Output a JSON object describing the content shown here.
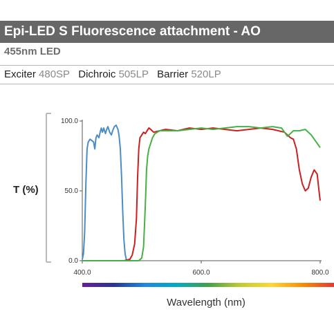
{
  "header": {
    "title": "Epi-LED S Fluorescence attachment - AO",
    "subtitle": "455nm LED"
  },
  "filters": [
    {
      "name": "Exciter",
      "value": "480SP"
    },
    {
      "name": "Dichroic",
      "value": "505LP"
    },
    {
      "name": "Barrier",
      "value": "520LP"
    }
  ],
  "colors": {
    "title_bg": "#676767",
    "exciter": "#4a8dc6",
    "dichroic": "#cc1f1f",
    "barrier": "#45b045",
    "spectrum": [
      "#6a1b9a",
      "#283593",
      "#1e88e5",
      "#00acc1",
      "#43a047",
      "#c0ca33",
      "#fdd835",
      "#fb8c00",
      "#e53935"
    ]
  },
  "chart_data": {
    "type": "line",
    "title": "",
    "xlabel": "Wavelength (nm)",
    "ylabel": "T (%)",
    "xlim": [
      400,
      800
    ],
    "ylim": [
      0,
      100
    ],
    "x_ticks": [
      "400.0",
      "600.0",
      "800.0"
    ],
    "y_ticks": [
      "0.0",
      "50.0",
      "100.0"
    ],
    "grid": false,
    "series": [
      {
        "key": "exciter",
        "points": [
          [
            400,
            1
          ],
          [
            402,
            5
          ],
          [
            404,
            20
          ],
          [
            406,
            55
          ],
          [
            408,
            80
          ],
          [
            410,
            85
          ],
          [
            413,
            87
          ],
          [
            416,
            86
          ],
          [
            419,
            85
          ],
          [
            421,
            80
          ],
          [
            423,
            88
          ],
          [
            425,
            90
          ],
          [
            428,
            88
          ],
          [
            430,
            92
          ],
          [
            432,
            95
          ],
          [
            434,
            92
          ],
          [
            436,
            95
          ],
          [
            439,
            91
          ],
          [
            441,
            94
          ],
          [
            443,
            96
          ],
          [
            446,
            92
          ],
          [
            449,
            90
          ],
          [
            451,
            93
          ],
          [
            454,
            96
          ],
          [
            457,
            97
          ],
          [
            460,
            94
          ],
          [
            462,
            89
          ],
          [
            464,
            80
          ],
          [
            466,
            60
          ],
          [
            468,
            35
          ],
          [
            470,
            15
          ],
          [
            472,
            5
          ],
          [
            474,
            1
          ],
          [
            476,
            0
          ],
          [
            480,
            0
          ]
        ]
      },
      {
        "key": "dichroic",
        "points": [
          [
            400,
            0
          ],
          [
            460,
            0
          ],
          [
            470,
            0
          ],
          [
            480,
            1
          ],
          [
            484,
            4
          ],
          [
            488,
            12
          ],
          [
            491,
            30
          ],
          [
            493,
            60
          ],
          [
            495,
            80
          ],
          [
            497,
            88
          ],
          [
            500,
            90
          ],
          [
            503,
            92
          ],
          [
            506,
            91
          ],
          [
            509,
            93
          ],
          [
            512,
            95
          ],
          [
            515,
            94
          ],
          [
            520,
            92
          ],
          [
            530,
            93
          ],
          [
            540,
            94
          ],
          [
            560,
            93
          ],
          [
            580,
            95
          ],
          [
            600,
            94
          ],
          [
            620,
            95
          ],
          [
            640,
            94
          ],
          [
            660,
            93
          ],
          [
            680,
            94
          ],
          [
            700,
            95
          ],
          [
            720,
            94
          ],
          [
            740,
            92
          ],
          [
            750,
            88
          ],
          [
            755,
            87
          ],
          [
            760,
            80
          ],
          [
            765,
            65
          ],
          [
            770,
            55
          ],
          [
            775,
            50
          ],
          [
            780,
            52
          ],
          [
            785,
            60
          ],
          [
            790,
            65
          ],
          [
            795,
            62
          ],
          [
            798,
            50
          ],
          [
            800,
            43
          ]
        ]
      },
      {
        "key": "barrier",
        "points": [
          [
            400,
            0
          ],
          [
            490,
            0
          ],
          [
            495,
            0
          ],
          [
            500,
            2
          ],
          [
            503,
            10
          ],
          [
            506,
            40
          ],
          [
            508,
            65
          ],
          [
            510,
            75
          ],
          [
            512,
            80
          ],
          [
            515,
            84
          ],
          [
            518,
            88
          ],
          [
            522,
            91
          ],
          [
            526,
            92
          ],
          [
            530,
            93
          ],
          [
            545,
            93
          ],
          [
            560,
            93
          ],
          [
            580,
            94
          ],
          [
            600,
            95
          ],
          [
            620,
            94
          ],
          [
            640,
            95
          ],
          [
            660,
            96
          ],
          [
            680,
            96
          ],
          [
            700,
            95
          ],
          [
            720,
            96
          ],
          [
            735,
            95
          ],
          [
            745,
            89
          ],
          [
            755,
            93
          ],
          [
            765,
            93
          ],
          [
            775,
            94
          ],
          [
            785,
            90
          ],
          [
            795,
            84
          ],
          [
            800,
            81
          ]
        ]
      }
    ]
  }
}
